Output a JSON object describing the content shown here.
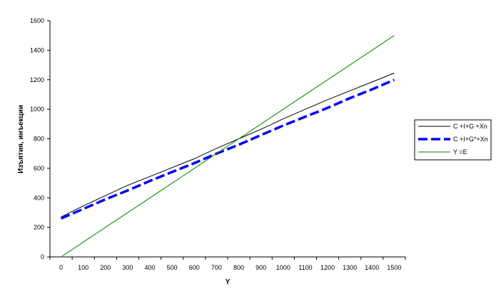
{
  "chart_data": {
    "type": "line",
    "xlabel": "Y",
    "ylabel": "Изъятия, инъекции",
    "ylim": [
      0,
      1600
    ],
    "yticks": [
      0,
      200,
      400,
      600,
      800,
      1000,
      1200,
      1400,
      1600
    ],
    "categories": [
      "0",
      "100",
      "200",
      "300",
      "400",
      "500",
      "600",
      "700",
      "800",
      "900",
      "1000",
      "1100",
      "1200",
      "1300",
      "1400",
      "1500"
    ],
    "series": [
      {
        "name": "C +I+G +Xn",
        "color": "#000000",
        "style": "solid-thin",
        "values": [
          270,
          345,
          415,
          485,
          545,
          605,
          665,
          735,
          800,
          865,
          935,
          1000,
          1065,
          1125,
          1185,
          1245
        ]
      },
      {
        "name": "C +I+G*+Xn",
        "color": "#0000ff",
        "style": "dashed-thick",
        "values": [
          260,
          325,
          390,
          450,
          515,
          575,
          635,
          700,
          760,
          825,
          890,
          950,
          1010,
          1075,
          1135,
          1200
        ]
      },
      {
        "name": "Y =E",
        "color": "#008000",
        "style": "solid-thin",
        "values": [
          0,
          100,
          200,
          300,
          400,
          500,
          600,
          700,
          800,
          900,
          1000,
          1100,
          1200,
          1300,
          1400,
          1500
        ]
      }
    ],
    "grid": false,
    "legend_position": "right"
  }
}
